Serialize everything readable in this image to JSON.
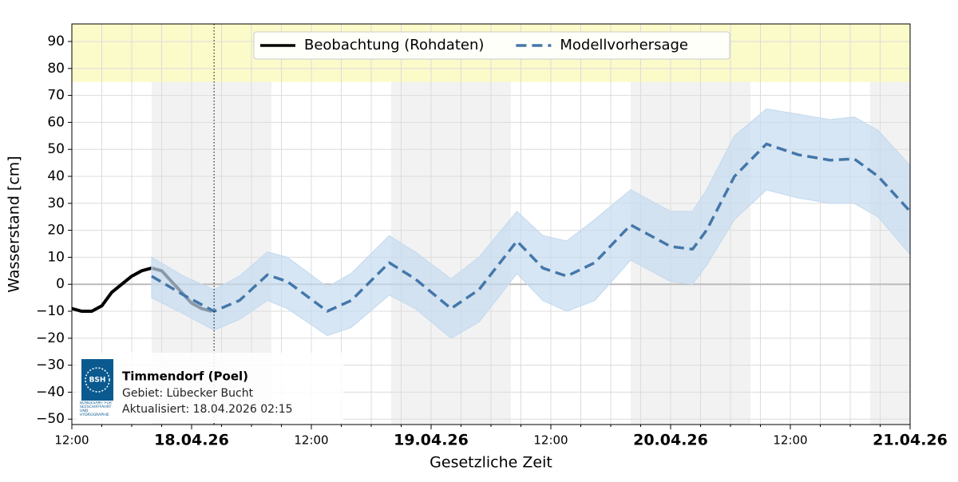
{
  "chart_data": {
    "type": "line",
    "ylabel": "Wasserstand [cm]",
    "xlabel": "Gesetzliche Zeit",
    "xlim": [
      0,
      84
    ],
    "xticks": [
      {
        "value": 0,
        "label": "12:00"
      },
      {
        "value": 12,
        "label": "18.04.26"
      },
      {
        "value": 24,
        "label": "12:00"
      },
      {
        "value": 36,
        "label": "19.04.26"
      },
      {
        "value": 48,
        "label": "12:00"
      },
      {
        "value": 60,
        "label": "20.04.26"
      },
      {
        "value": 72,
        "label": "12:00"
      },
      {
        "value": 84,
        "label": "21.04.26"
      }
    ],
    "xminorticks": [
      3,
      6,
      9,
      15,
      18,
      21,
      27,
      30,
      33,
      39,
      42,
      45,
      51,
      54,
      57,
      63,
      66,
      69,
      75,
      78,
      81
    ],
    "ylim": [
      -52,
      96.5
    ],
    "yticks": [
      {
        "value": -50,
        "label": "−50"
      },
      {
        "value": -40,
        "label": "−40"
      },
      {
        "value": -30,
        "label": "−30"
      },
      {
        "value": -20,
        "label": "−20"
      },
      {
        "value": -10,
        "label": "−10"
      },
      0,
      10,
      20,
      30,
      40,
      50,
      60,
      70,
      80,
      90
    ],
    "grid": true,
    "legend": "upper center",
    "warning_band": {
      "ylim": [
        75,
        96.5
      ],
      "color": "#fbfac9"
    },
    "night_bands": [
      [
        8,
        20
      ],
      [
        32,
        44
      ],
      [
        56,
        68
      ],
      [
        80,
        84
      ]
    ],
    "now_x": 14.25,
    "series": [
      {
        "name": "Beobachtung (Rohdaten)",
        "color": "#000000",
        "x": [
          0,
          1,
          2,
          3,
          4,
          5,
          6,
          7,
          8,
          9,
          10,
          11,
          12,
          13,
          14
        ],
        "values": [
          -9,
          -10,
          -10,
          -8,
          -3,
          0,
          3,
          5,
          6,
          5,
          1,
          -3,
          -7,
          -9,
          -10
        ]
      },
      {
        "name": "Modellvorhersage",
        "color": "#4477aa",
        "band_color": "#c6dbef",
        "dashed": true,
        "x": [
          8,
          11.2,
          14.25,
          16.8,
          19.6,
          21.6,
          25.6,
          28,
          31.8,
          34.4,
          38,
          40.8,
          44.6,
          47.2,
          49.6,
          52.4,
          56,
          60,
          62.2,
          63.6,
          66.4,
          69.6,
          72.8,
          76,
          78.4,
          80.8,
          84
        ],
        "values": [
          3,
          -4,
          -10,
          -6,
          3.5,
          1,
          -10,
          -6,
          8,
          2,
          -9,
          -2,
          16,
          6,
          3,
          8,
          22,
          14,
          13,
          20,
          40,
          52,
          48,
          46,
          46.5,
          40,
          27
        ],
        "lower": [
          -5,
          -11,
          -17,
          -13,
          -6,
          -9,
          -19,
          -16,
          -4,
          -9,
          -20,
          -14,
          4,
          -6,
          -10,
          -6,
          9,
          1,
          0,
          7,
          24,
          35,
          32,
          30,
          30,
          25,
          11
        ],
        "upper": [
          10,
          3,
          -2,
          3,
          12,
          10,
          -1,
          4,
          18,
          12,
          2,
          10,
          27,
          18,
          16,
          24,
          35,
          27,
          27,
          35,
          55,
          65,
          63,
          61,
          62,
          57,
          44
        ]
      }
    ]
  },
  "info": {
    "station": "Timmendorf (Poel)",
    "area": "Gebiet: Lübecker Bucht",
    "updated": "Aktualisiert: 18.04.2026 02:15",
    "logo": "BSH",
    "logo_caption": "BUNDESAMT FÜR SEESCHIFFFAHRT UND HYDROGRAPHIE"
  }
}
